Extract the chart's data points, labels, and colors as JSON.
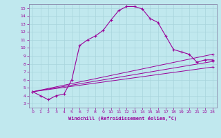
{
  "xlabel": "Windchill (Refroidissement éolien,°C)",
  "xlim": [
    0,
    23
  ],
  "ylim": [
    3,
    15
  ],
  "xticks": [
    0,
    1,
    2,
    3,
    4,
    5,
    6,
    7,
    8,
    9,
    10,
    11,
    12,
    13,
    14,
    15,
    16,
    17,
    18,
    19,
    20,
    21,
    22,
    23
  ],
  "yticks": [
    3,
    4,
    5,
    6,
    7,
    8,
    9,
    10,
    11,
    12,
    13,
    14,
    15
  ],
  "line_color": "#990099",
  "bg_color": "#c0e8ee",
  "grid_color": "#a8d4dc",
  "spine_color": "#8888aa",
  "line1_x": [
    0,
    1,
    2,
    3,
    4,
    5,
    6,
    7,
    8,
    9,
    10,
    11,
    12,
    13,
    14,
    15,
    16,
    17,
    18,
    19,
    20,
    21,
    22,
    23
  ],
  "line1_y": [
    4.5,
    4.0,
    3.5,
    4.0,
    4.2,
    6.0,
    10.3,
    11.0,
    11.5,
    12.2,
    13.5,
    14.7,
    15.2,
    15.2,
    14.9,
    13.7,
    13.2,
    11.5,
    9.8,
    9.5,
    9.2,
    8.2,
    8.5,
    8.5
  ],
  "line2_x": [
    0,
    23
  ],
  "line2_y": [
    4.5,
    9.2
  ],
  "line3_x": [
    0,
    23
  ],
  "line3_y": [
    4.5,
    8.3
  ],
  "line4_x": [
    0,
    23
  ],
  "line4_y": [
    4.5,
    7.6
  ]
}
